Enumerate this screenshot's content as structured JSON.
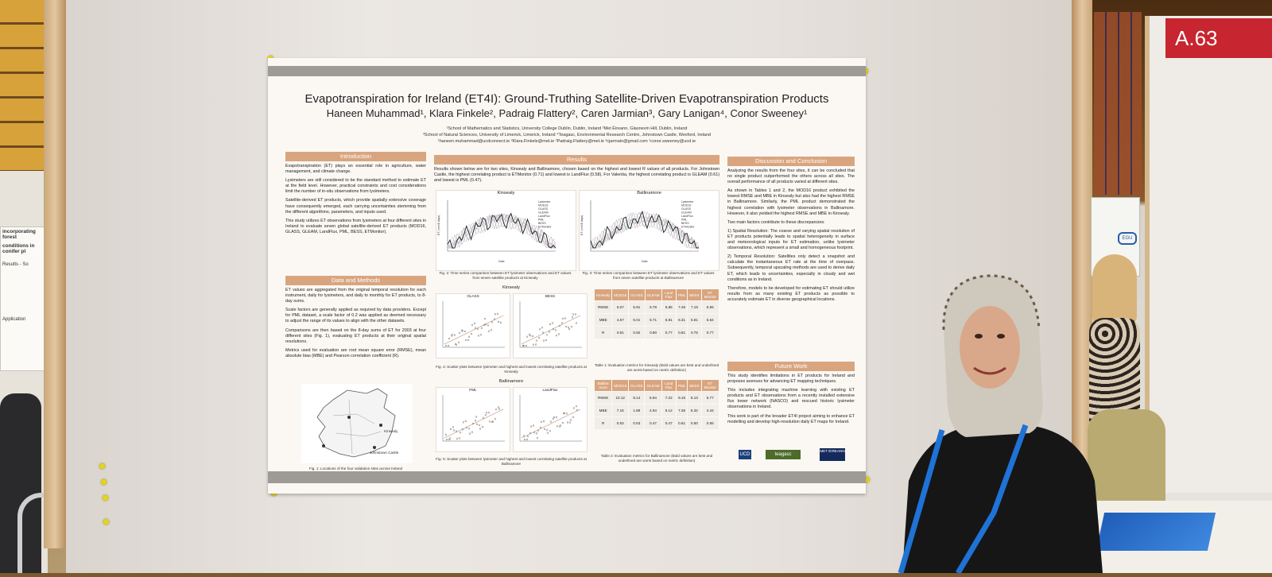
{
  "booth": {
    "sign": "A.63"
  },
  "neighbor_poster": {
    "title_line1": "incorporating forest",
    "title_line2": "conditions in conifer pl",
    "results_label": "Results - So",
    "application_label": "Application"
  },
  "egu_logo": "EGU",
  "poster": {
    "title": "Evapotranspiration for Ireland (ET4I): Ground-Truthing Satellite-Driven Evapotranspiration Products",
    "authors": "Haneen Muhammad¹, Klara Finkele², Padraig Flattery², Caren Jarmian³, Gary Lanigan⁴, Conor Sweeney¹",
    "affiliations": [
      "¹School of Mathematics and Statistics, University College Dublin, Dublin, Ireland  ²Met Éireann, Glasnevin Hill, Dublin, Ireland",
      "³School of Natural Sciences, University of Limerick, Limerick, Ireland  ⁴Teagasc, Environmental Research Centre, Johnstown Castle, Wexford, Ireland",
      "¹haneen.muhammad@ucdconnect.ie  ²Klara.Finkele@met.ie  ²Padraig.Flattery@met.ie  ³cjarmain@gmail.com  ¹conor.sweeney@ucd.ie"
    ],
    "introduction": {
      "heading": "Introduction",
      "paragraphs": [
        "Evapotranspiration (ET) plays an essential role in agriculture, water management, and climate change.",
        "Lysimeters are still considered to be the standard method to estimate ET at the field level. However, practical constraints and cost considerations limit the number of in-situ observations from lysimeters.",
        "Satellite-derived ET products, which provide spatially extensive coverage have consequently emerged, each carrying uncertainties stemming from the different algorithms, parameters, and inputs used.",
        "This study utilizes ET observations from lysimeters at four different sites in Ireland to evaluate seven global satellite-derived ET products (MOD16, GLASS, GLEAM, LandFlux, PML, BESS, ETMonitor)."
      ]
    },
    "data_methods": {
      "heading": "Data and Methods",
      "paragraphs": [
        "ET values are aggregated from the original temporal resolution for each instrument, daily for lysimeters, and daily to monthly for ET products, to 8-day sums.",
        "Scale factors are generally applied as required by data providers. Except for PML dataset, a scale factor of 0.2 was applied as deemed necessary to adjust the range of its values to align with the other datasets.",
        "Comparisons are then based on the 8-day sums of ET for 2003 at four different sites (Fig. 1), evaluating ET products at their original spatial resolutions.",
        "Metrics used for evaluation are root mean square error (RMSE), mean absolute bias (MBE) and Pearson correlation coefficient (R)."
      ],
      "map_labels": [
        "Kinsealy",
        "Johnstown Castle"
      ],
      "fig1_caption": "Fig. 1: Locations of the four validation sites across Ireland"
    },
    "results": {
      "heading": "Results",
      "intro": "Results shown below are for two sites, Kinsealy and Ballinamore, chosen based on the highest and lowest R values of all products. For Johnstown Castle, the highest correlating product is ETMonitor (0.71) and lowest is LandFlux (0.58). For Valentia, the highest correlating product is GLEAM (0.61) and lowest is PML (0.47).",
      "ts_kinsealy_title": "Kinsealy",
      "ts_ballinamore_title": "Ballinamore",
      "ts_legend": [
        "Lysimeter",
        "MOD16",
        "GLASS",
        "GLEAM",
        "LandFlux",
        "PML",
        "BESS",
        "ETMonitor"
      ],
      "ts_ylabel": "ET (mm/8 days)",
      "ts_xlabel": "Date",
      "fig2_caption": "Fig. 2: Time series comparison between ET lysimeter observations and ET values from seven satellite products at Kinsealy",
      "fig3_caption": "Fig. 3: Time series comparison between ET lysimeter observations and ET values from seven satellite products at Ballinamore",
      "scatter_kinsealy_title": "Kinsealy",
      "scatter_k_left": "GLASS",
      "scatter_k_right": "BESS",
      "fig4_caption": "Fig. 4: Scatter plots between lysimeter and highest and lowest correlating satellite products at Kinsealy",
      "scatter_ballinamore_title": "Ballinamore",
      "scatter_b_left": "PML",
      "scatter_b_right": "LandFlux",
      "fig5_caption": "Fig. 5: Scatter plots between lysimeter and highest and lowest correlating satellite products at Ballinamore",
      "table1": {
        "headers": [
          "Kinsealy",
          "MOD16",
          "GLASS",
          "GLEAM",
          "Land Flux",
          "PML",
          "BESS",
          "ET Monitor"
        ],
        "rows": [
          [
            "RMSE",
            "5.67",
            "5.91",
            "6.79",
            "6.86",
            "7.49",
            "7.16",
            "6.55"
          ],
          [
            "MBE",
            "4.57",
            "5.01",
            "5.71",
            "5.81",
            "6.31",
            "5.81",
            "5.64"
          ],
          [
            "R",
            "0.81",
            "0.82",
            "0.80",
            "0.77",
            "0.81",
            "0.75",
            "0.77"
          ]
        ],
        "caption": "Table 1: Evaluation metrics for Kinsealy (Bold values are best and underlined are worst based on metric definition)"
      },
      "table2": {
        "headers": [
          "Ballina more",
          "MOD16",
          "GLASS",
          "GLEAM",
          "Land Flux",
          "PML",
          "BESS",
          "ET Monitor"
        ],
        "rows": [
          [
            "RMSE",
            "10.12",
            "8.14",
            "6.94",
            "7.22",
            "9.18",
            "8.13",
            "5.77"
          ],
          [
            "MBE",
            "7.16",
            "1.88",
            "4.94",
            "5.12",
            "7.36",
            "6.32",
            "4.44"
          ],
          [
            "R",
            "0.53",
            "0.53",
            "0.47",
            "0.47",
            "0.61",
            "0.50",
            "0.55"
          ]
        ],
        "caption": "Table 2: Evaluation metrics for Ballinamore (Bold values are best and underlined are worst based on metric definition)"
      }
    },
    "discussion": {
      "heading": "Discussion and Conclusion",
      "paragraphs": [
        "Analyzing the results from the four sites, it can be concluded that no single product outperformed the others across all sites. The overall performance of all products varied at different sites.",
        "As shown in Tables 1 and 2, the MOD16 product exhibited the lowest RMSE and MBE in Kinsealy but also had the highest RMSE in Ballinamore. Similarly, the PML product demonstrated the highest correlation with lysimeter observations in Ballinamore. However, it also yielded the highest RMSE and MBE in Kinsealy.",
        "Two main factors contribute to these discrepancies:",
        "1) Spatial Resolution: The coarse and varying spatial resolution of ET products potentially leads to spatial heterogeneity in surface and meteorological inputs for ET estimation, unlike lysimeter observations, which represent a small and homogeneous footprint.",
        "2) Temporal Resolution: Satellites only detect a snapshot and calculate the instantaneous ET rate at the time of overpass. Subsequently, temporal upscaling methods are used to derive daily ET, which leads to uncertainties, especially in cloudy and wet conditions as in Ireland.",
        "Therefore, models to be developed for estimating ET should utilize results from as many existing ET products as possible to accurately estimate ET in diverse geographical locations."
      ]
    },
    "future": {
      "heading": "Future Work",
      "paragraphs": [
        "This study identifies limitations in ET products for Ireland and proposes avenues for advancing ET mapping techniques.",
        "This includes integrating machine learning with existing ET products and ET observations from a recently installed extensive flux tower network (NASCO) and rescued historic lysimeter observations in Ireland.",
        "This work is part of the broader ET4I project aiming to enhance ET modelling and develop high-resolution daily ET maps for Ireland."
      ]
    },
    "logos": [
      "UCD",
      "teagasc",
      "MET ÉIREANN"
    ]
  },
  "colors": {
    "section_header": "#d9a57f",
    "poster_bar": "#9e9a96",
    "lanyard": "#1f72d6",
    "booth_sign": "#c7252f"
  }
}
